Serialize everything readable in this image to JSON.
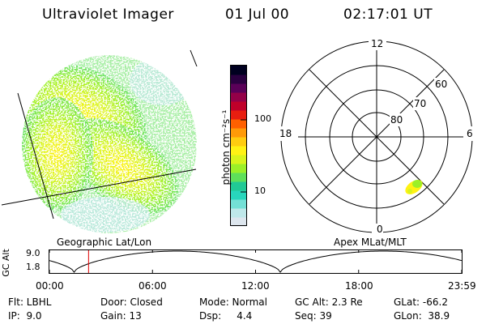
{
  "header": {
    "title": "Ultraviolet Imager",
    "date": "01 Jul 00",
    "time": "02:17:01 UT"
  },
  "left_panel": {
    "caption": "Geographic Lat/Lon"
  },
  "right_panel": {
    "caption": "Apex MLat/MLT",
    "mlt_labels": {
      "top": "12",
      "left": "18",
      "right": "6",
      "bottom": "0"
    },
    "lat_labels": [
      "60",
      "70",
      "80"
    ]
  },
  "colorbar": {
    "unit": "photon cm⁻²s⁻¹",
    "ticks": [
      "100",
      "10"
    ],
    "colors": [
      "#dde6ee",
      "#bfe8ea",
      "#74e0d6",
      "#28d6bc",
      "#21c995",
      "#5ee05a",
      "#9bf028",
      "#d8f41c",
      "#fff214",
      "#ffcc10",
      "#ff9a08",
      "#ff6000",
      "#e81e10",
      "#c0002a",
      "#940048",
      "#5a0058",
      "#2a0040",
      "#000020"
    ]
  },
  "timeline": {
    "ylabel": "GC Alt",
    "ymax": "9.0",
    "ymin": "1.8",
    "xticks": [
      "00:00",
      "06:00",
      "12:00",
      "18:00",
      "23:59"
    ],
    "marker_fraction": 0.095
  },
  "info": {
    "row1": [
      "Flt: LBHL",
      "Door: Closed",
      "Mode: Normal",
      "GC Alt: 2.3 Re",
      "GLat: -66.2"
    ],
    "row2": [
      "IP:  9.0",
      "Gain: 13",
      "Dsp:     4.4",
      "Seq: 39",
      "GLon:  38.9"
    ]
  }
}
